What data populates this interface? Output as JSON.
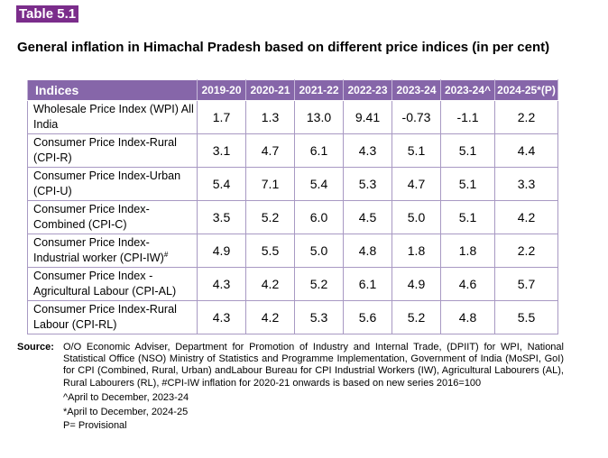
{
  "table_label": "Table 5.1",
  "title": "General inflation in Himachal Pradesh based on different price indices (in per cent)",
  "table": {
    "headers": [
      "Indices",
      "2019-20",
      "2020-21",
      "2021-22",
      "2022-23",
      "2023-24",
      "2023-24^",
      "2024-25*(P)"
    ],
    "rows": [
      {
        "label": "Wholesale Price Index (WPI) All India",
        "sup": "",
        "values": [
          "1.7",
          "1.3",
          "13.0",
          "9.41",
          "-0.73",
          "-1.1",
          "2.2"
        ]
      },
      {
        "label": "Consumer Price Index-Rural (CPI-R)",
        "sup": "",
        "values": [
          "3.1",
          "4.7",
          "6.1",
          "4.3",
          "5.1",
          "5.1",
          "4.4"
        ]
      },
      {
        "label": "Consumer Price Index-Urban (CPI-U)",
        "sup": "",
        "values": [
          "5.4",
          "7.1",
          "5.4",
          "5.3",
          "4.7",
          "5.1",
          "3.3"
        ]
      },
      {
        "label": "Consumer Price Index- Combined (CPI-C)",
        "sup": "",
        "values": [
          "3.5",
          "5.2",
          "6.0",
          "4.5",
          "5.0",
          "5.1",
          "4.2"
        ]
      },
      {
        "label": "Consumer Price Index- Industrial worker (CPI-IW)",
        "sup": "#",
        "values": [
          "4.9",
          "5.5",
          "5.0",
          "4.8",
          "1.8",
          "1.8",
          "2.2"
        ]
      },
      {
        "label": "Consumer Price Index - Agricultural Labour (CPI-AL)",
        "sup": "",
        "values": [
          "4.3",
          "4.2",
          "5.2",
          "6.1",
          "4.9",
          "4.6",
          "5.7"
        ]
      },
      {
        "label": "Consumer Price Index-Rural Labour  (CPI-RL)",
        "sup": "",
        "values": [
          "4.3",
          "4.2",
          "5.3",
          "5.6",
          "5.2",
          "4.8",
          "5.5"
        ]
      }
    ]
  },
  "source": {
    "label": "Source:",
    "text": "O/O Economic Adviser, Department for Promotion of Industry and Internal Trade, (DPIIT) for WPI, National Statistical Office (NSO) Ministry of Statistics and Programme Implementation, Government of India (MoSPI, GoI) for CPI (Combined, Rural, Urban) andLabour Bureau for CPI Industrial Workers (IW), Agricultural Labourers (AL), Rural Labourers (RL), #CPI-IW inflation for 2020-21 onwards is based on new series 2016=100",
    "notes": [
      "^April to December, 2023-24",
      "*April to December, 2024-25",
      "P= Provisional"
    ]
  },
  "colors": {
    "accent": "#7b2d8b",
    "header_bg": "#8666a9",
    "border": "#a899c3"
  }
}
